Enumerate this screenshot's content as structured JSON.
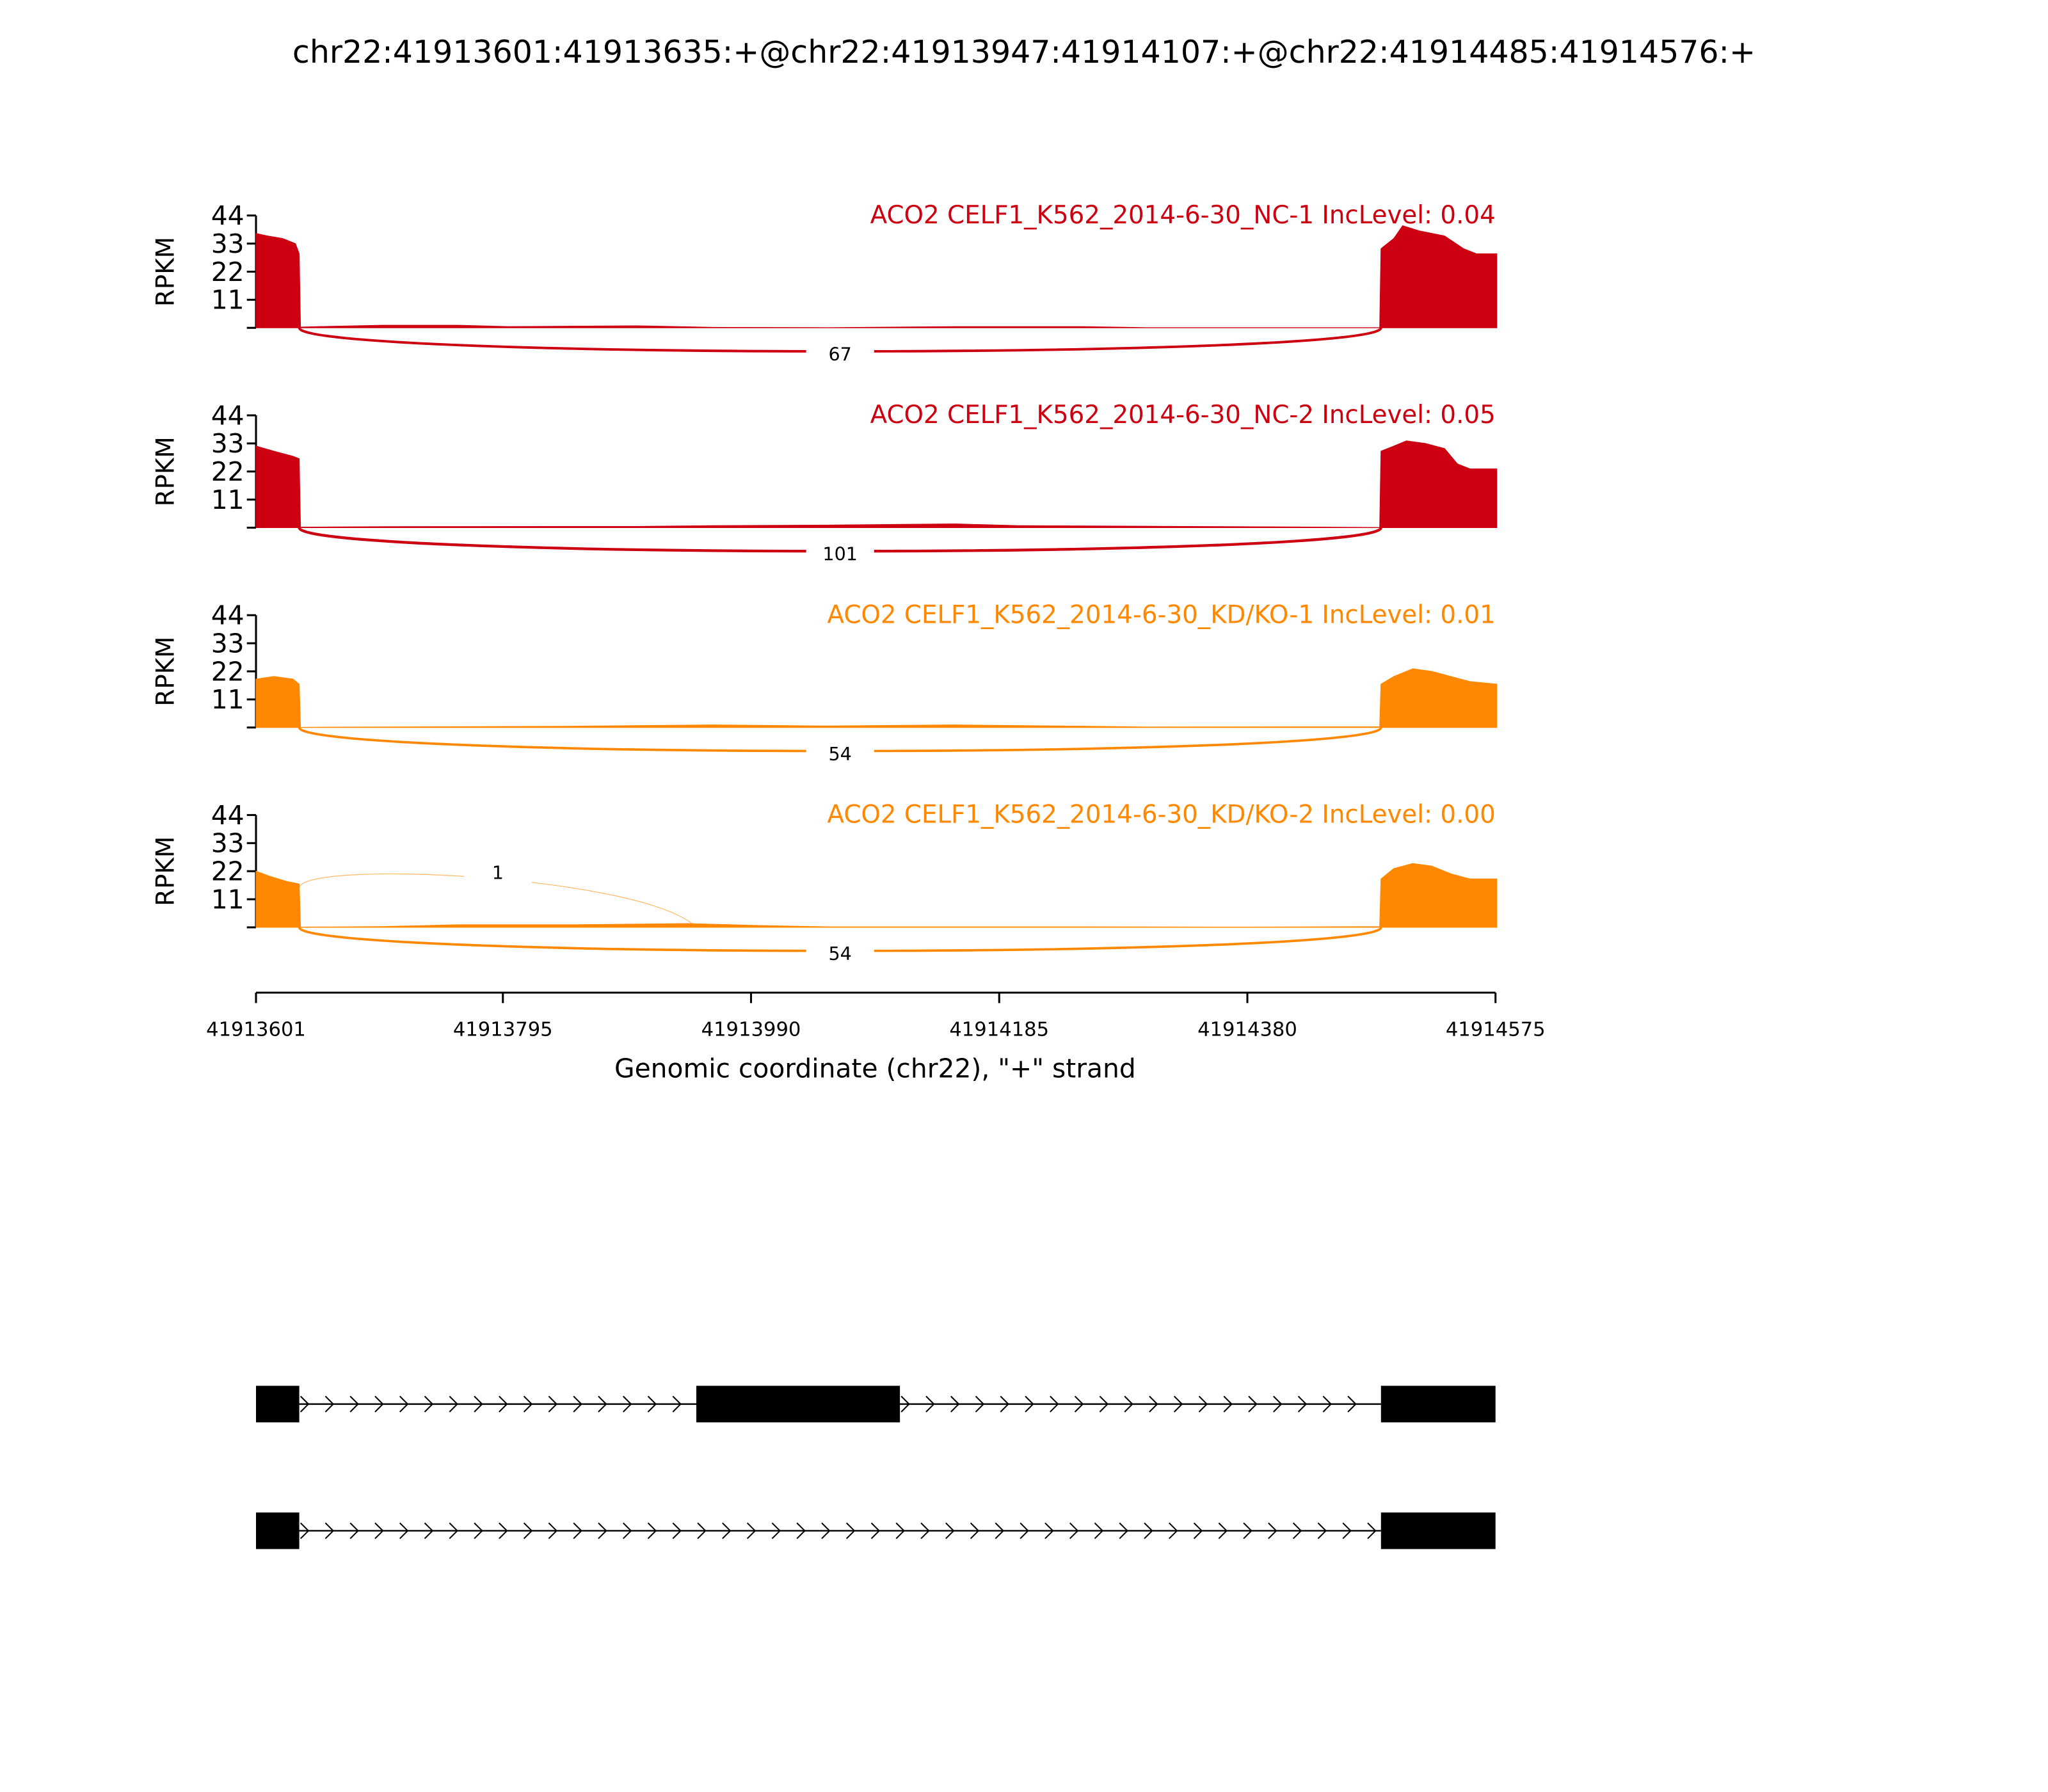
{
  "chart_data": {
    "type": "area",
    "title": "chr22:41913601:41913635:+@chr22:41913947:41914107:+@chr22:41914485:41914576:+",
    "xlabel": "Genomic coordinate (chr22), \"+\" strand",
    "ylabel": "RPKM",
    "xlim": [
      41913601,
      41914575
    ],
    "ylim": [
      0,
      44
    ],
    "xticks": [
      "41913601",
      "41913795",
      "41913990",
      "41914185",
      "41914380",
      "41914575"
    ],
    "yticks": [
      "11",
      "22",
      "33",
      "44"
    ],
    "colors": {
      "NC": "#CC0011",
      "KD": "#FF8800"
    },
    "series": [
      {
        "name": "ACO2 CELF1_K562_2014-6-30_NC-1 IncLevel: 0.04",
        "color": "#CC0011",
        "coverage": [
          [
            41913601,
            37
          ],
          [
            41913610,
            36
          ],
          [
            41913622,
            35
          ],
          [
            41913632,
            33
          ],
          [
            41913635,
            29
          ],
          [
            41913636,
            0.3
          ],
          [
            41913650,
            0.5
          ],
          [
            41913700,
            1
          ],
          [
            41913760,
            1
          ],
          [
            41913800,
            0.5
          ],
          [
            41913900,
            0.8
          ],
          [
            41913960,
            0.2
          ],
          [
            41914050,
            0.1
          ],
          [
            41914150,
            0.5
          ],
          [
            41914250,
            0.5
          ],
          [
            41914300,
            0.1
          ],
          [
            41914484,
            0.1
          ],
          [
            41914485,
            31
          ],
          [
            41914495,
            35
          ],
          [
            41914502,
            40
          ],
          [
            41914515,
            38
          ],
          [
            41914535,
            36
          ],
          [
            41914550,
            31
          ],
          [
            41914560,
            29
          ],
          [
            41914576,
            29
          ]
        ],
        "junctions": [
          {
            "from": 41913635,
            "to": 41914485,
            "count": "67",
            "side": "below"
          }
        ]
      },
      {
        "name": "ACO2 CELF1_K562_2014-6-30_NC-2 IncLevel: 0.05",
        "color": "#CC0011",
        "coverage": [
          [
            41913601,
            32
          ],
          [
            41913615,
            30
          ],
          [
            41913630,
            28
          ],
          [
            41913635,
            27
          ],
          [
            41913636,
            0.2
          ],
          [
            41913700,
            0.4
          ],
          [
            41913900,
            0.5
          ],
          [
            41913960,
            0.8
          ],
          [
            41914050,
            1
          ],
          [
            41914150,
            1.5
          ],
          [
            41914200,
            0.8
          ],
          [
            41914330,
            0.5
          ],
          [
            41914484,
            0.1
          ],
          [
            41914485,
            30
          ],
          [
            41914495,
            32
          ],
          [
            41914505,
            34
          ],
          [
            41914520,
            33
          ],
          [
            41914535,
            31
          ],
          [
            41914545,
            25
          ],
          [
            41914555,
            23
          ],
          [
            41914576,
            23
          ]
        ],
        "junctions": [
          {
            "from": 41913635,
            "to": 41914485,
            "count": "101",
            "side": "below"
          }
        ]
      },
      {
        "name": "ACO2 CELF1_K562_2014-6-30_KD/KO-1 IncLevel: 0.01",
        "color": "#FF8800",
        "coverage": [
          [
            41913601,
            19
          ],
          [
            41913615,
            20
          ],
          [
            41913630,
            19
          ],
          [
            41913635,
            17
          ],
          [
            41913636,
            0.1
          ],
          [
            41913750,
            0.3
          ],
          [
            41913850,
            0.5
          ],
          [
            41913960,
            1
          ],
          [
            41914050,
            0.6
          ],
          [
            41914150,
            1
          ],
          [
            41914250,
            0.5
          ],
          [
            41914300,
            0.2
          ],
          [
            41914484,
            0.3
          ],
          [
            41914485,
            17
          ],
          [
            41914495,
            20
          ],
          [
            41914510,
            23
          ],
          [
            41914525,
            22
          ],
          [
            41914540,
            20
          ],
          [
            41914555,
            18
          ],
          [
            41914576,
            17
          ]
        ],
        "junctions": [
          {
            "from": 41913635,
            "to": 41914485,
            "count": "54",
            "side": "below"
          }
        ]
      },
      {
        "name": "ACO2 CELF1_K562_2014-6-30_KD/KO-2 IncLevel: 0.00",
        "color": "#FF8800",
        "coverage": [
          [
            41913601,
            22
          ],
          [
            41913612,
            20
          ],
          [
            41913625,
            18
          ],
          [
            41913635,
            17
          ],
          [
            41913636,
            0.1
          ],
          [
            41913700,
            0.3
          ],
          [
            41913760,
            1
          ],
          [
            41913850,
            1
          ],
          [
            41913940,
            1.5
          ],
          [
            41913990,
            0.8
          ],
          [
            41914050,
            0.2
          ],
          [
            41914250,
            0.2
          ],
          [
            41914380,
            0.1
          ],
          [
            41914484,
            0.3
          ],
          [
            41914485,
            19
          ],
          [
            41914495,
            23
          ],
          [
            41914510,
            25
          ],
          [
            41914525,
            24
          ],
          [
            41914540,
            21
          ],
          [
            41914555,
            19
          ],
          [
            41914576,
            19
          ]
        ],
        "junctions": [
          {
            "from": 41913635,
            "to": 41914485,
            "count": "54",
            "side": "below"
          },
          {
            "from": 41913635,
            "to": 41913947,
            "count": "1",
            "side": "above"
          }
        ]
      }
    ],
    "gene_models": [
      {
        "exons": [
          [
            41913601,
            41913635
          ],
          [
            41913947,
            41914107
          ],
          [
            41914485,
            41914576
          ]
        ]
      },
      {
        "exons": [
          [
            41913601,
            41913635
          ],
          [
            41914485,
            41914576
          ]
        ]
      }
    ]
  }
}
